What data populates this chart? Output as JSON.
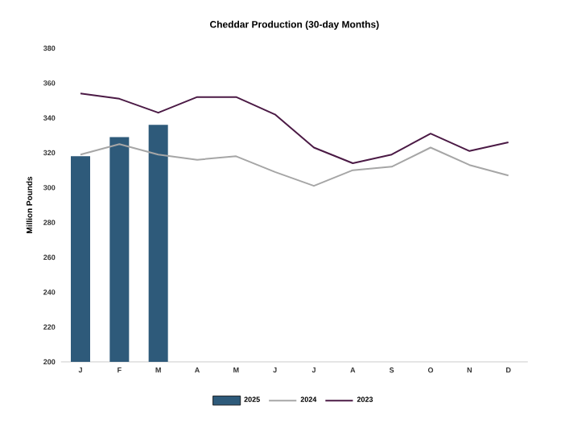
{
  "chart_data": {
    "type": "bar",
    "title": "Cheddar Production (30-day Months)",
    "ylabel": "Million Pounds",
    "categories": [
      "J",
      "F",
      "M",
      "A",
      "M",
      "J",
      "J",
      "A",
      "S",
      "O",
      "N",
      "D"
    ],
    "series": [
      {
        "name": "2025",
        "color": "#2e5a7a",
        "values": [
          318,
          329,
          336,
          null,
          null,
          null,
          null,
          null,
          null,
          null,
          null,
          null
        ]
      },
      {
        "name": "2024",
        "type": "line",
        "color": "#a6a6a6",
        "values": [
          319,
          325,
          319,
          316,
          318,
          309,
          301,
          310,
          312,
          323,
          313,
          307
        ]
      },
      {
        "name": "2023",
        "type": "line",
        "color": "#4b1a45",
        "values": [
          354,
          351,
          343,
          352,
          352,
          342,
          323,
          314,
          319,
          331,
          321,
          326
        ]
      }
    ],
    "ylim": [
      200,
      380
    ],
    "yticks": [
      200,
      220,
      240,
      260,
      280,
      300,
      320,
      340,
      360,
      380
    ],
    "legend": "bottom",
    "marker": "none",
    "line_style": "solid"
  }
}
